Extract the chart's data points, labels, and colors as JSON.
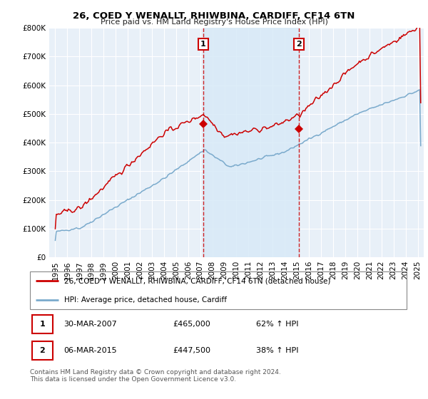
{
  "title": "26, COED Y WENALLT, RHIWBINA, CARDIFF, CF14 6TN",
  "subtitle": "Price paid vs. HM Land Registry's House Price Index (HPI)",
  "legend_line1": "26, COED Y WENALLT, RHIWBINA, CARDIFF, CF14 6TN (detached house)",
  "legend_line2": "HPI: Average price, detached house, Cardiff",
  "transaction1_label": "1",
  "transaction1_date": "30-MAR-2007",
  "transaction1_price": "£465,000",
  "transaction1_hpi": "62% ↑ HPI",
  "transaction2_label": "2",
  "transaction2_date": "06-MAR-2015",
  "transaction2_price": "£447,500",
  "transaction2_hpi": "38% ↑ HPI",
  "footer": "Contains HM Land Registry data © Crown copyright and database right 2024.\nThis data is licensed under the Open Government Licence v3.0.",
  "ylim": [
    0,
    800000
  ],
  "yticks": [
    0,
    100000,
    200000,
    300000,
    400000,
    500000,
    600000,
    700000,
    800000
  ],
  "xlim_start": 1994.5,
  "xlim_end": 2025.5,
  "transaction1_x": 2007.25,
  "transaction2_x": 2015.17,
  "transaction1_y": 465000,
  "transaction2_y": 447500,
  "red_color": "#cc0000",
  "blue_color": "#7aaacc",
  "shade_color": "#d8eaf7",
  "bg_color": "#e8f0f8"
}
